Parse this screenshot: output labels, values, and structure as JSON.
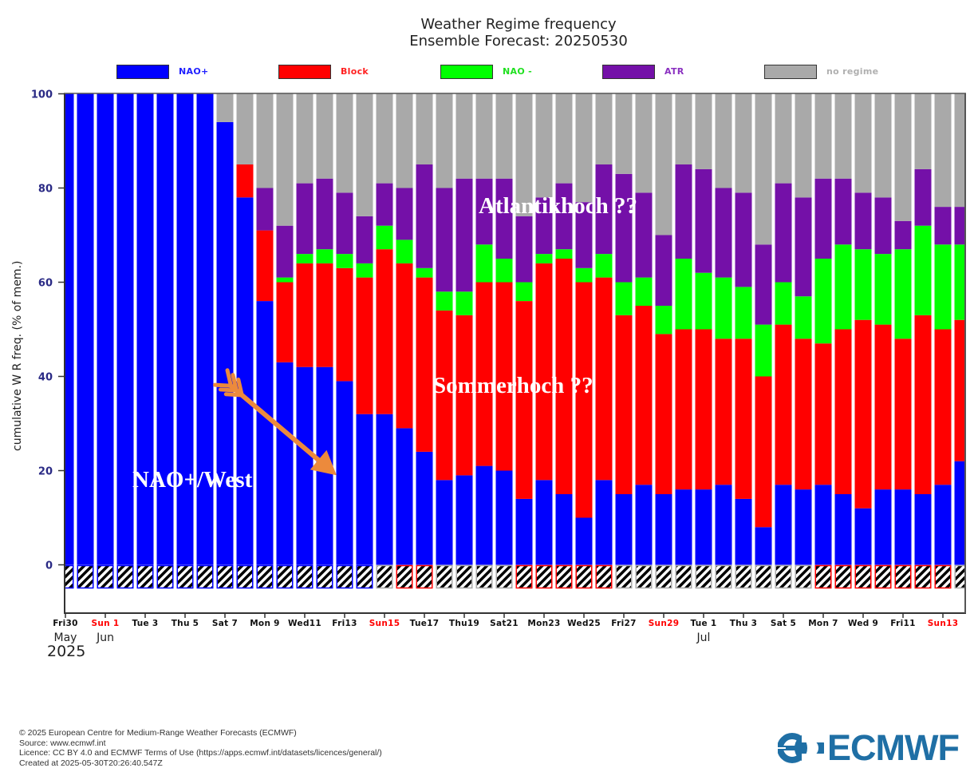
{
  "chart_data": {
    "type": "bar",
    "stacked": true,
    "cumulative": true,
    "title": "Weather Regime frequency",
    "subtitle": "Ensemble Forecast: 20250530",
    "xlabel": "",
    "ylabel": "cumulative W R freq. (% of mem.)",
    "ylim": [
      -10,
      100
    ],
    "yticks": [
      0,
      20,
      40,
      60,
      80,
      100
    ],
    "legend_position": "top",
    "grid": false,
    "series": [
      {
        "name": "NAO+",
        "color": "#0000ff"
      },
      {
        "name": "Block",
        "color": "#ff0000"
      },
      {
        "name": "NAO -",
        "color": "#00ff00"
      },
      {
        "name": "ATR",
        "color": "#7410a8"
      },
      {
        "name": "no regime",
        "color": "#a9a9a9"
      }
    ],
    "categories": [
      "May30",
      "May31",
      "Jun1",
      "Jun2",
      "Jun3",
      "Jun4",
      "Jun5",
      "Jun6",
      "Jun7",
      "Jun8",
      "Jun9",
      "Jun10",
      "Jun11",
      "Jun12",
      "Jun13",
      "Jun14",
      "Jun15",
      "Jun16",
      "Jun17",
      "Jun18",
      "Jun19",
      "Jun20",
      "Jun21",
      "Jun22",
      "Jun23",
      "Jun24",
      "Jun25",
      "Jun26",
      "Jun27",
      "Jun28",
      "Jun29",
      "Jun30",
      "Jul1",
      "Jul2",
      "Jul3",
      "Jul4",
      "Jul5",
      "Jul6",
      "Jul7",
      "Jul8",
      "Jul9",
      "Jul10",
      "Jul11",
      "Jul12",
      "Jul13",
      "Jul14"
    ],
    "cumulative_tops": {
      "NAO+": [
        100,
        100,
        100,
        100,
        100,
        100,
        100,
        100,
        94,
        78,
        56,
        43,
        42,
        42,
        39,
        32,
        32,
        29,
        24,
        18,
        19,
        21,
        20,
        14,
        18,
        15,
        10,
        18,
        15,
        17,
        15,
        16,
        16,
        17,
        14,
        8,
        17,
        16,
        17,
        15,
        12,
        16,
        16,
        15,
        17,
        22
      ],
      "Block": [
        100,
        100,
        100,
        100,
        100,
        100,
        100,
        100,
        94,
        85,
        71,
        60,
        64,
        64,
        63,
        61,
        67,
        64,
        61,
        54,
        53,
        60,
        60,
        56,
        64,
        65,
        60,
        61,
        53,
        55,
        49,
        50,
        50,
        48,
        48,
        40,
        51,
        48,
        47,
        50,
        52,
        51,
        48,
        53,
        50,
        52
      ],
      "NAO -": [
        100,
        100,
        100,
        100,
        100,
        100,
        100,
        100,
        94,
        85,
        71,
        61,
        66,
        67,
        66,
        64,
        72,
        69,
        63,
        58,
        58,
        68,
        65,
        60,
        66,
        67,
        63,
        66,
        60,
        61,
        55,
        65,
        62,
        61,
        59,
        51,
        60,
        57,
        65,
        68,
        67,
        66,
        67,
        72,
        68,
        68
      ],
      "ATR": [
        100,
        100,
        100,
        100,
        100,
        100,
        100,
        100,
        94,
        85,
        80,
        72,
        81,
        82,
        79,
        74,
        81,
        80,
        85,
        80,
        82,
        82,
        82,
        74,
        78,
        81,
        77,
        85,
        83,
        79,
        70,
        85,
        84,
        80,
        79,
        68,
        81,
        78,
        82,
        82,
        79,
        78,
        73,
        84,
        76,
        76
      ],
      "no regime": [
        100,
        100,
        100,
        100,
        100,
        100,
        100,
        100,
        100,
        100,
        100,
        100,
        100,
        100,
        100,
        100,
        100,
        100,
        100,
        100,
        100,
        100,
        100,
        100,
        100,
        100,
        100,
        100,
        100,
        100,
        100,
        100,
        100,
        100,
        100,
        100,
        100,
        100,
        100,
        100,
        100,
        100,
        100,
        100,
        100,
        100
      ]
    },
    "dominant_regime_strip": [
      "NAO+",
      "NAO+",
      "NAO+",
      "NAO+",
      "NAO+",
      "NAO+",
      "NAO+",
      "NAO+",
      "NAO+",
      "NAO+",
      "NAO+",
      "NAO+",
      "NAO+",
      "NAO+",
      "NAO+",
      "NAO+",
      "no regime",
      "Block",
      "Block",
      "no regime",
      "no regime",
      "no regime",
      "no regime",
      "Block",
      "Block",
      "Block",
      "Block",
      "Block",
      "no regime",
      "no regime",
      "no regime",
      "no regime",
      "no regime",
      "no regime",
      "no regime",
      "no regime",
      "no regime",
      "no regime",
      "Block",
      "Block",
      "Block",
      "Block",
      "Block",
      "Block",
      "Block",
      "no regime"
    ],
    "xtick_labels": [
      {
        "day": 0,
        "label": "Fri30",
        "weekend": false
      },
      {
        "day": 2,
        "label": "Sun 1",
        "weekend": true
      },
      {
        "day": 4,
        "label": "Tue 3",
        "weekend": false
      },
      {
        "day": 6,
        "label": "Thu 5",
        "weekend": false
      },
      {
        "day": 8,
        "label": "Sat 7",
        "weekend": false
      },
      {
        "day": 10,
        "label": "Mon 9",
        "weekend": false
      },
      {
        "day": 12,
        "label": "Wed11",
        "weekend": false
      },
      {
        "day": 14,
        "label": "Fri13",
        "weekend": false
      },
      {
        "day": 16,
        "label": "Sun15",
        "weekend": true
      },
      {
        "day": 18,
        "label": "Tue17",
        "weekend": false
      },
      {
        "day": 20,
        "label": "Thu19",
        "weekend": false
      },
      {
        "day": 22,
        "label": "Sat21",
        "weekend": false
      },
      {
        "day": 24,
        "label": "Mon23",
        "weekend": false
      },
      {
        "day": 26,
        "label": "Wed25",
        "weekend": false
      },
      {
        "day": 28,
        "label": "Fri27",
        "weekend": false
      },
      {
        "day": 30,
        "label": "Sun29",
        "weekend": true
      },
      {
        "day": 32,
        "label": "Tue 1",
        "weekend": false
      },
      {
        "day": 34,
        "label": "Thu 3",
        "weekend": false
      },
      {
        "day": 36,
        "label": "Sat 5",
        "weekend": false
      },
      {
        "day": 38,
        "label": "Mon 7",
        "weekend": false
      },
      {
        "day": 40,
        "label": "Wed 9",
        "weekend": false
      },
      {
        "day": 42,
        "label": "Fri11",
        "weekend": false
      },
      {
        "day": 44,
        "label": "Sun13",
        "weekend": true
      }
    ],
    "month_labels": [
      {
        "day": 0,
        "label": "May"
      },
      {
        "day": 2,
        "label": "Jun"
      },
      {
        "day": 32,
        "label": "Jul"
      }
    ],
    "year_label": "2025",
    "annotations": [
      {
        "text": "NAO+/West"
      },
      {
        "text": "Sommerhoch ??"
      },
      {
        "text": "Atlantikhoch ??"
      },
      {
        "type": "arrow",
        "color": "#ec8a3c",
        "from_day": 8.3,
        "from_value": 38,
        "to_day": 13.6,
        "to_value": 19
      }
    ]
  },
  "header": {
    "title": "Weather Regime frequency",
    "subtitle": "Ensemble Forecast: 20250530"
  },
  "legend": [
    {
      "label": "NAO+",
      "color": "#0000ff",
      "text_color": "#2020ff"
    },
    {
      "label": "Block",
      "color": "#ff0000",
      "text_color": "#ff2020"
    },
    {
      "label": "NAO -",
      "color": "#00ff00",
      "text_color": "#20e020"
    },
    {
      "label": "ATR",
      "color": "#7410a8",
      "text_color": "#8a30c0"
    },
    {
      "label": "no regime",
      "color": "#a9a9a9",
      "text_color": "#b0b0b0"
    }
  ],
  "annotations": {
    "nao_west": "NAO+/West",
    "sommerhoch": "Sommerhoch ??",
    "atlantikhoch": "Atlantikhoch ??"
  },
  "footer": {
    "copyright": "© 2025 European Centre for Medium-Range Weather Forecasts (ECMWF)",
    "source": "Source: www.ecmwf.int",
    "licence": "Licence: CC BY 4.0 and ECMWF Terms of Use (https://apps.ecmwf.int/datasets/licences/general/)",
    "created": "Created at 2025-05-30T20:26:40.547Z"
  },
  "logo": {
    "text": "ECMWF",
    "icon": "ecmwf-logo-icon",
    "color": "#1f6fa5"
  }
}
